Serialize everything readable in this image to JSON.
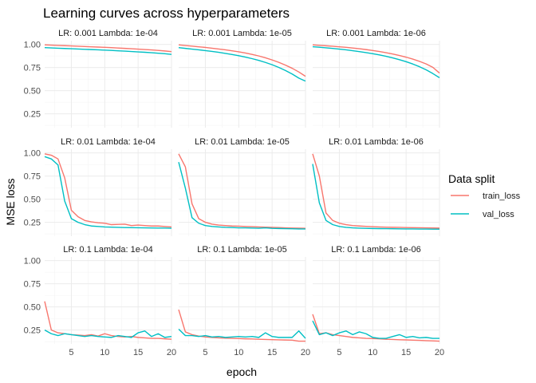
{
  "chart_data": {
    "type": "line",
    "title": "Learning curves across hyperparameters",
    "xlabel": "epoch",
    "ylabel": "MSE loss",
    "xlim": [
      1,
      20
    ],
    "ylim": [
      0.1,
      1.04
    ],
    "x_ticks": [
      5,
      10,
      15,
      20
    ],
    "y_ticks": [
      0.25,
      0.5,
      0.75,
      1.0
    ],
    "y_tick_labels": [
      "0.25",
      "0.50",
      "0.75",
      "1.00"
    ],
    "grid": true,
    "legend": {
      "title": "Data split",
      "placement": "right",
      "entries": [
        {
          "name": "train_loss",
          "color": "#F8766D"
        },
        {
          "name": "val_loss",
          "color": "#00BFC4"
        }
      ]
    },
    "x": [
      1,
      2,
      3,
      4,
      5,
      6,
      7,
      8,
      9,
      10,
      11,
      12,
      13,
      14,
      15,
      16,
      17,
      18,
      19,
      20
    ],
    "panels": [
      {
        "label": "LR: 0.001 Lambda: 1e-04",
        "series": [
          {
            "name": "train_loss",
            "values": [
              0.995,
              0.992,
              0.989,
              0.986,
              0.983,
              0.98,
              0.977,
              0.974,
              0.971,
              0.968,
              0.965,
              0.961,
              0.957,
              0.953,
              0.949,
              0.945,
              0.94,
              0.935,
              0.929,
              0.922
            ]
          },
          {
            "name": "val_loss",
            "values": [
              0.965,
              0.962,
              0.959,
              0.956,
              0.953,
              0.95,
              0.947,
              0.944,
              0.941,
              0.938,
              0.935,
              0.931,
              0.927,
              0.923,
              0.919,
              0.915,
              0.91,
              0.905,
              0.899,
              0.892
            ]
          }
        ]
      },
      {
        "label": "LR: 0.001 Lambda: 1e-05",
        "series": [
          {
            "name": "train_loss",
            "values": [
              0.995,
              0.988,
              0.981,
              0.974,
              0.967,
              0.959,
              0.95,
              0.941,
              0.931,
              0.92,
              0.907,
              0.892,
              0.875,
              0.855,
              0.832,
              0.806,
              0.776,
              0.742,
              0.702,
              0.655
            ]
          },
          {
            "name": "val_loss",
            "values": [
              0.965,
              0.957,
              0.949,
              0.941,
              0.933,
              0.924,
              0.914,
              0.903,
              0.891,
              0.878,
              0.863,
              0.846,
              0.827,
              0.805,
              0.78,
              0.751,
              0.718,
              0.68,
              0.636,
              0.603
            ]
          }
        ]
      },
      {
        "label": "LR: 0.001 Lambda: 1e-06",
        "series": [
          {
            "name": "train_loss",
            "values": [
              0.995,
              0.99,
              0.985,
              0.98,
              0.974,
              0.968,
              0.961,
              0.953,
              0.944,
              0.934,
              0.923,
              0.91,
              0.896,
              0.88,
              0.862,
              0.841,
              0.817,
              0.789,
              0.752,
              0.69
            ]
          },
          {
            "name": "val_loss",
            "values": [
              0.975,
              0.969,
              0.963,
              0.956,
              0.949,
              0.941,
              0.932,
              0.922,
              0.911,
              0.899,
              0.886,
              0.871,
              0.854,
              0.835,
              0.813,
              0.788,
              0.759,
              0.725,
              0.685,
              0.64
            ]
          }
        ]
      },
      {
        "label": "LR: 0.01 Lambda: 1e-04",
        "series": [
          {
            "name": "train_loss",
            "values": [
              0.99,
              0.975,
              0.935,
              0.73,
              0.38,
              0.31,
              0.27,
              0.255,
              0.245,
              0.24,
              0.225,
              0.228,
              0.23,
              0.215,
              0.22,
              0.215,
              0.21,
              0.21,
              0.205,
              0.2
            ]
          },
          {
            "name": "val_loss",
            "values": [
              0.96,
              0.935,
              0.87,
              0.48,
              0.29,
              0.25,
              0.225,
              0.21,
              0.205,
              0.2,
              0.198,
              0.195,
              0.193,
              0.192,
              0.191,
              0.19,
              0.189,
              0.188,
              0.188,
              0.186
            ]
          }
        ]
      },
      {
        "label": "LR: 0.01 Lambda: 1e-05",
        "series": [
          {
            "name": "train_loss",
            "values": [
              0.99,
              0.85,
              0.45,
              0.29,
              0.25,
              0.23,
              0.22,
              0.215,
              0.21,
              0.208,
              0.205,
              0.203,
              0.2,
              0.198,
              0.195,
              0.193,
              0.19,
              0.188,
              0.187,
              0.185
            ]
          },
          {
            "name": "val_loss",
            "values": [
              0.9,
              0.62,
              0.3,
              0.24,
              0.215,
              0.205,
              0.2,
              0.195,
              0.193,
              0.19,
              0.19,
              0.188,
              0.186,
              0.19,
              0.185,
              0.183,
              0.181,
              0.18,
              0.178,
              0.178
            ]
          }
        ]
      },
      {
        "label": "LR: 0.01 Lambda: 1e-06",
        "series": [
          {
            "name": "train_loss",
            "values": [
              0.99,
              0.75,
              0.35,
              0.27,
              0.24,
              0.225,
              0.215,
              0.21,
              0.206,
              0.203,
              0.2,
              0.198,
              0.196,
              0.195,
              0.193,
              0.192,
              0.191,
              0.19,
              0.189,
              0.188
            ]
          },
          {
            "name": "val_loss",
            "values": [
              0.88,
              0.46,
              0.27,
              0.225,
              0.205,
              0.195,
              0.19,
              0.187,
              0.185,
              0.183,
              0.182,
              0.181,
              0.18,
              0.179,
              0.178,
              0.178,
              0.177,
              0.177,
              0.176,
              0.176
            ]
          }
        ]
      },
      {
        "label": "LR: 0.1 Lambda: 1e-04",
        "series": [
          {
            "name": "train_loss",
            "values": [
              0.56,
              0.25,
              0.22,
              0.21,
              0.2,
              0.195,
              0.19,
              0.2,
              0.185,
              0.21,
              0.19,
              0.18,
              0.175,
              0.18,
              0.17,
              0.165,
              0.16,
              0.16,
              0.155,
              0.15
            ]
          },
          {
            "name": "val_loss",
            "values": [
              0.25,
              0.21,
              0.19,
              0.21,
              0.2,
              0.19,
              0.18,
              0.19,
              0.18,
              0.175,
              0.17,
              0.19,
              0.18,
              0.17,
              0.22,
              0.24,
              0.18,
              0.21,
              0.17,
              0.18
            ]
          }
        ]
      },
      {
        "label": "LR: 0.1 Lambda: 1e-05",
        "series": [
          {
            "name": "train_loss",
            "values": [
              0.47,
              0.23,
              0.2,
              0.185,
              0.175,
              0.17,
              0.165,
              0.162,
              0.16,
              0.158,
              0.155,
              0.153,
              0.15,
              0.148,
              0.146,
              0.144,
              0.142,
              0.14,
              0.13,
              0.13
            ]
          },
          {
            "name": "val_loss",
            "values": [
              0.26,
              0.19,
              0.19,
              0.18,
              0.19,
              0.175,
              0.18,
              0.17,
              0.175,
              0.18,
              0.175,
              0.18,
              0.17,
              0.22,
              0.18,
              0.17,
              0.17,
              0.17,
              0.24,
              0.16
            ]
          }
        ]
      },
      {
        "label": "LR: 0.1 Lambda: 1e-06",
        "series": [
          {
            "name": "train_loss",
            "values": [
              0.42,
              0.21,
              0.22,
              0.2,
              0.19,
              0.18,
              0.17,
              0.165,
              0.16,
              0.158,
              0.155,
              0.15,
              0.148,
              0.145,
              0.143,
              0.14,
              0.138,
              0.135,
              0.133,
              0.13
            ]
          },
          {
            "name": "val_loss",
            "values": [
              0.35,
              0.2,
              0.22,
              0.19,
              0.22,
              0.24,
              0.2,
              0.23,
              0.21,
              0.17,
              0.16,
              0.16,
              0.18,
              0.2,
              0.17,
              0.18,
              0.165,
              0.17,
              0.16,
              0.16
            ]
          }
        ]
      }
    ]
  }
}
